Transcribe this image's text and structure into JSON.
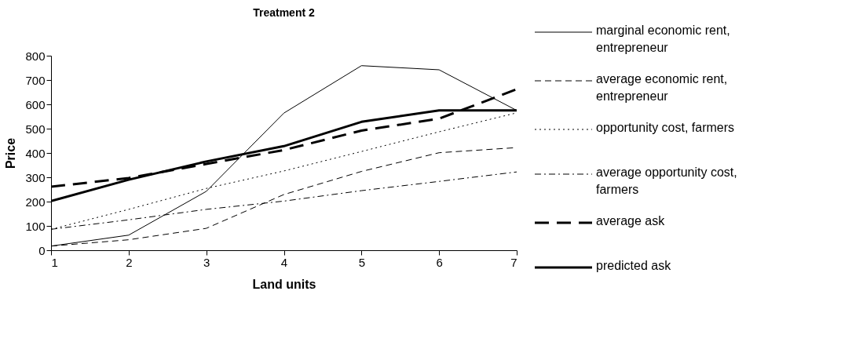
{
  "chart_data": {
    "type": "line",
    "title": "Treatment 2",
    "xlabel": "Land units",
    "ylabel": "Price",
    "x": [
      1,
      2,
      3,
      4,
      5,
      6,
      7
    ],
    "series": [
      {
        "name": "marginal economic rent, entrepreneur",
        "color": "#000000",
        "line_style": "solid",
        "values": [
          17,
          62,
          242,
          564,
          759,
          742,
          575
        ]
      },
      {
        "name": "average economic rent, entrepreneur",
        "color": "#000000",
        "line_style": "dashed",
        "values": [
          17,
          43,
          90,
          229,
          324,
          401,
          422
        ]
      },
      {
        "name": "opportunity cost, farmers",
        "color": "#000000",
        "line_style": "dotted",
        "values": [
          86,
          168,
          254,
          326,
          406,
          487,
          565
        ]
      },
      {
        "name": "average opportunity cost, farmers",
        "color": "#000000",
        "line_style": "dashdot",
        "values": [
          86,
          125,
          168,
          202,
          245,
          283,
          322
        ]
      },
      {
        "name": "average ask",
        "color": "#000000",
        "line_style": "dashed",
        "values": [
          261,
          297,
          355,
          412,
          492,
          541,
          662
        ]
      },
      {
        "name": "predicted ask",
        "color": "#000000",
        "line_style": "solid",
        "values": [
          202,
          290,
          365,
          428,
          528,
          575,
          575
        ]
      }
    ],
    "xlim": [
      1,
      7
    ],
    "xticks": [
      1,
      2,
      3,
      4,
      5,
      6,
      7
    ],
    "ylim": [
      0,
      800
    ],
    "yticks": [
      0,
      100,
      200,
      300,
      400,
      500,
      600,
      700,
      800
    ],
    "grid": false,
    "legend": "right",
    "marker": "none"
  }
}
